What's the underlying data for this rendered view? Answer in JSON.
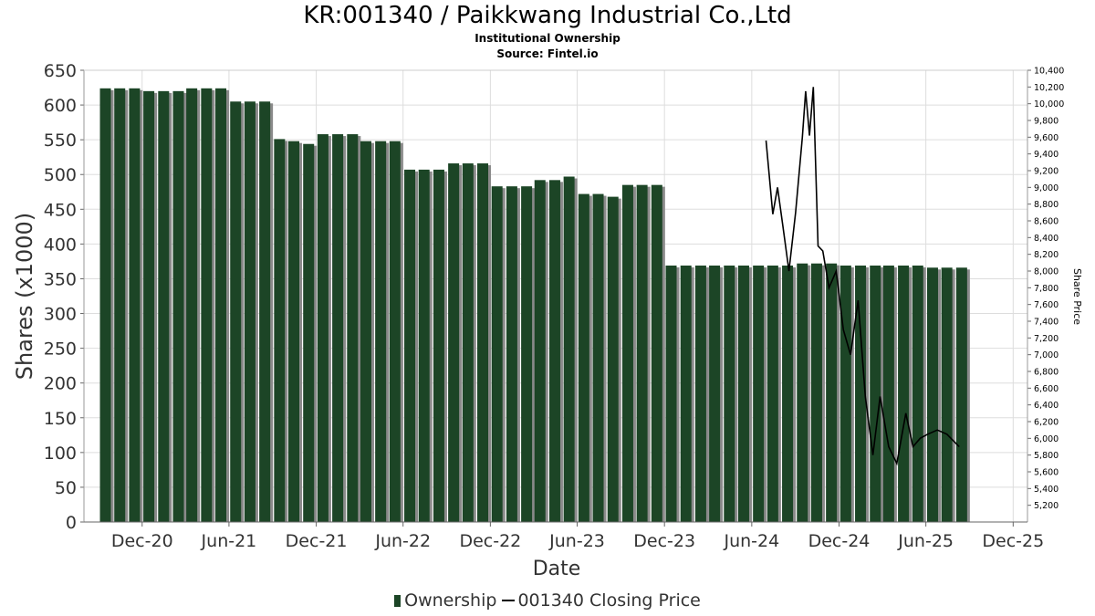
{
  "title": "KR:001340 / Paikkwang Industrial Co.,Ltd",
  "subtitle": "Institutional Ownership",
  "source": "Source: Fintel.io",
  "colors": {
    "bar": "#1c4526",
    "bar_shadow": "#8a8a8a",
    "price_line": "#000000",
    "grid": "#dddddd"
  },
  "legend": {
    "ownership": "Ownership",
    "price": "001340 Closing Price"
  },
  "chart_data": {
    "type": "bar",
    "xlabel": "Date",
    "ylabel": "Shares (x1000)",
    "y2label": "Share Price",
    "ylim": [
      0,
      650
    ],
    "y2lim": [
      5000,
      10400
    ],
    "xlim": [
      "2020-08-01",
      "2025-12-31"
    ],
    "yticks": [
      0,
      50,
      100,
      150,
      200,
      250,
      300,
      350,
      400,
      450,
      500,
      550,
      600,
      650
    ],
    "y2ticks": [
      5200,
      5400,
      5600,
      5800,
      6000,
      6200,
      6400,
      6600,
      6800,
      7000,
      7200,
      7400,
      7600,
      7800,
      8000,
      8200,
      8400,
      8600,
      8800,
      9000,
      9200,
      9400,
      9600,
      9800,
      10000,
      10200,
      10400
    ],
    "y2ticklabels": [
      "5,200",
      "5,400",
      "5,600",
      "5,800",
      "6,000",
      "6,200",
      "6,400",
      "6,600",
      "6,800",
      "7,000",
      "7,200",
      "7,400",
      "7,600",
      "7,800",
      "8,000",
      "8,200",
      "8,400",
      "8,600",
      "8,800",
      "9,000",
      "9,200",
      "9,400",
      "9,600",
      "9,800",
      "10,000",
      "10,200",
      "10,400"
    ],
    "xticks": [
      {
        "label": "Dec-20",
        "date": "2020-12-01"
      },
      {
        "label": "Jun-21",
        "date": "2021-06-01"
      },
      {
        "label": "Dec-21",
        "date": "2021-12-01"
      },
      {
        "label": "Jun-22",
        "date": "2022-06-01"
      },
      {
        "label": "Dec-22",
        "date": "2022-12-01"
      },
      {
        "label": "Jun-23",
        "date": "2023-06-01"
      },
      {
        "label": "Dec-23",
        "date": "2023-12-01"
      },
      {
        "label": "Jun-24",
        "date": "2024-06-01"
      },
      {
        "label": "Dec-24",
        "date": "2024-12-01"
      },
      {
        "label": "Jun-25",
        "date": "2025-06-01"
      },
      {
        "label": "Dec-25",
        "date": "2025-12-01"
      }
    ],
    "grid": true,
    "legend_position": "bottom",
    "series": [
      {
        "name": "Ownership",
        "type": "bar",
        "axis": "left",
        "points": [
          {
            "date": "2020-09-15",
            "value": 624
          },
          {
            "date": "2020-10-15",
            "value": 624
          },
          {
            "date": "2020-11-15",
            "value": 624
          },
          {
            "date": "2020-12-15",
            "value": 620
          },
          {
            "date": "2021-01-15",
            "value": 620
          },
          {
            "date": "2021-02-15",
            "value": 620
          },
          {
            "date": "2021-03-15",
            "value": 624
          },
          {
            "date": "2021-04-15",
            "value": 624
          },
          {
            "date": "2021-05-15",
            "value": 624
          },
          {
            "date": "2021-06-15",
            "value": 605
          },
          {
            "date": "2021-07-15",
            "value": 605
          },
          {
            "date": "2021-08-15",
            "value": 605
          },
          {
            "date": "2021-09-15",
            "value": 551
          },
          {
            "date": "2021-10-15",
            "value": 548
          },
          {
            "date": "2021-11-15",
            "value": 544
          },
          {
            "date": "2021-12-15",
            "value": 558
          },
          {
            "date": "2022-01-15",
            "value": 558
          },
          {
            "date": "2022-02-15",
            "value": 558
          },
          {
            "date": "2022-03-15",
            "value": 548
          },
          {
            "date": "2022-04-15",
            "value": 548
          },
          {
            "date": "2022-05-15",
            "value": 548
          },
          {
            "date": "2022-06-15",
            "value": 507
          },
          {
            "date": "2022-07-15",
            "value": 507
          },
          {
            "date": "2022-08-15",
            "value": 507
          },
          {
            "date": "2022-09-15",
            "value": 516
          },
          {
            "date": "2022-10-15",
            "value": 516
          },
          {
            "date": "2022-11-15",
            "value": 516
          },
          {
            "date": "2022-12-15",
            "value": 483
          },
          {
            "date": "2023-01-15",
            "value": 483
          },
          {
            "date": "2023-02-15",
            "value": 483
          },
          {
            "date": "2023-03-15",
            "value": 492
          },
          {
            "date": "2023-04-15",
            "value": 492
          },
          {
            "date": "2023-05-15",
            "value": 497
          },
          {
            "date": "2023-06-15",
            "value": 472
          },
          {
            "date": "2023-07-15",
            "value": 472
          },
          {
            "date": "2023-08-15",
            "value": 468
          },
          {
            "date": "2023-09-15",
            "value": 485
          },
          {
            "date": "2023-10-15",
            "value": 485
          },
          {
            "date": "2023-11-15",
            "value": 485
          },
          {
            "date": "2023-12-15",
            "value": 369
          },
          {
            "date": "2024-01-15",
            "value": 369
          },
          {
            "date": "2024-02-15",
            "value": 369
          },
          {
            "date": "2024-03-15",
            "value": 369
          },
          {
            "date": "2024-04-15",
            "value": 369
          },
          {
            "date": "2024-05-15",
            "value": 369
          },
          {
            "date": "2024-06-15",
            "value": 369
          },
          {
            "date": "2024-07-15",
            "value": 369
          },
          {
            "date": "2024-08-15",
            "value": 369
          },
          {
            "date": "2024-09-15",
            "value": 372
          },
          {
            "date": "2024-10-15",
            "value": 372
          },
          {
            "date": "2024-11-15",
            "value": 372
          },
          {
            "date": "2024-12-15",
            "value": 369
          },
          {
            "date": "2025-01-15",
            "value": 369
          },
          {
            "date": "2025-02-15",
            "value": 369
          },
          {
            "date": "2025-03-15",
            "value": 369
          },
          {
            "date": "2025-04-15",
            "value": 369
          },
          {
            "date": "2025-05-15",
            "value": 369
          },
          {
            "date": "2025-06-15",
            "value": 366
          },
          {
            "date": "2025-07-15",
            "value": 366
          },
          {
            "date": "2025-08-15",
            "value": 366
          }
        ]
      },
      {
        "name": "001340 Closing Price",
        "type": "line",
        "axis": "right",
        "points": [
          {
            "date": "2024-07-01",
            "value": 9560
          },
          {
            "date": "2024-07-15",
            "value": 8680
          },
          {
            "date": "2024-07-25",
            "value": 9000
          },
          {
            "date": "2024-08-05",
            "value": 8550
          },
          {
            "date": "2024-08-18",
            "value": 8000
          },
          {
            "date": "2024-09-01",
            "value": 8700
          },
          {
            "date": "2024-09-15",
            "value": 9600
          },
          {
            "date": "2024-09-22",
            "value": 10150
          },
          {
            "date": "2024-09-30",
            "value": 9620
          },
          {
            "date": "2024-10-08",
            "value": 10200
          },
          {
            "date": "2024-10-18",
            "value": 8300
          },
          {
            "date": "2024-10-28",
            "value": 8240
          },
          {
            "date": "2024-11-10",
            "value": 7800
          },
          {
            "date": "2024-11-25",
            "value": 8000
          },
          {
            "date": "2024-12-10",
            "value": 7300
          },
          {
            "date": "2024-12-25",
            "value": 7000
          },
          {
            "date": "2025-01-10",
            "value": 7650
          },
          {
            "date": "2025-01-25",
            "value": 6500
          },
          {
            "date": "2025-02-10",
            "value": 5800
          },
          {
            "date": "2025-02-25",
            "value": 6500
          },
          {
            "date": "2025-03-15",
            "value": 5900
          },
          {
            "date": "2025-04-01",
            "value": 5700
          },
          {
            "date": "2025-04-20",
            "value": 6300
          },
          {
            "date": "2025-05-05",
            "value": 5900
          },
          {
            "date": "2025-05-20",
            "value": 6000
          },
          {
            "date": "2025-06-05",
            "value": 6050
          },
          {
            "date": "2025-06-25",
            "value": 6100
          },
          {
            "date": "2025-07-15",
            "value": 6050
          },
          {
            "date": "2025-08-10",
            "value": 5900
          }
        ]
      }
    ]
  }
}
